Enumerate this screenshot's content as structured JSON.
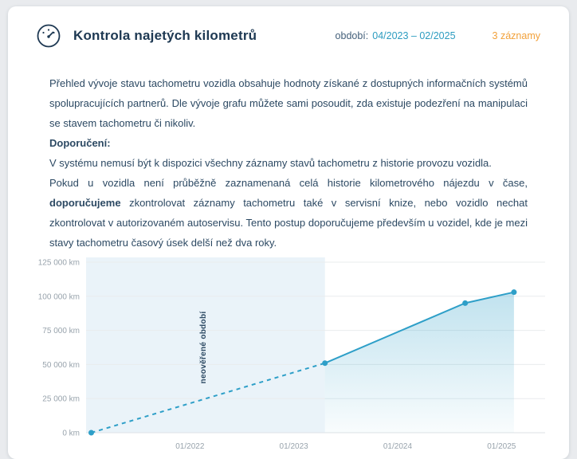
{
  "header": {
    "title": "Kontrola najetých kilometrů",
    "period_label": "období:",
    "period_value": "04/2023 – 02/2025",
    "records_label": "3 záznamy"
  },
  "content": {
    "intro": "Přehled vývoje stavu tachometru vozidla obsahuje hodnoty získané z dostupných informačních systémů spolupracujících partnerů. Dle vývoje grafu můžete sami posoudit, zda existuje podezření na manipulaci se stavem tachometru či nikoliv.",
    "recommendation_heading": "Doporučení:",
    "note": "V systému nemusí být k dispozici všechny záznamy stavů tachometru z historie provozu vozidla.",
    "advice_part1": "Pokud u vozidla není průběžně zaznamenaná celá historie kilometrového nájezdu v čase, ",
    "advice_bold": "doporučujeme",
    "advice_part2": " zkontrolovat záznamy tachometru také v servisní knize, nebo vozidlo nechat zkontrolovat v autorizovaném autoservisu. Tento postup doporučujeme především u vozidel, kde je mezi stavy tachometru časový úsek delší než dva roky."
  },
  "chart_data": {
    "type": "line",
    "unit": "km",
    "ylim": [
      0,
      125000
    ],
    "xlim": [
      2021.0,
      2025.42
    ],
    "grid": true,
    "y_ticks": [
      {
        "value": 125000,
        "label": "125 000 km"
      },
      {
        "value": 100000,
        "label": "100 000 km"
      },
      {
        "value": 75000,
        "label": "75 000 km"
      },
      {
        "value": 50000,
        "label": "50 000 km"
      },
      {
        "value": 25000,
        "label": "25 000 km"
      },
      {
        "value": 0,
        "label": "0 km"
      }
    ],
    "x_ticks": [
      {
        "value": 2022,
        "label": "01/2022"
      },
      {
        "value": 2023,
        "label": "01/2023"
      },
      {
        "value": 2024,
        "label": "01/2024"
      },
      {
        "value": 2025,
        "label": "01/2025"
      }
    ],
    "unverified_region": {
      "from": 2021.0,
      "to": 2023.3,
      "label": "neověřené období"
    },
    "series": [
      {
        "name": "neovereny-prubeh",
        "style": "dashed",
        "points": [
          {
            "x": 2021.05,
            "y": 0
          },
          {
            "x": 2023.3,
            "y": 51000
          }
        ]
      },
      {
        "name": "overene-zaznamy",
        "style": "solid",
        "points": [
          {
            "x": 2023.3,
            "y": 51000
          },
          {
            "x": 2024.65,
            "y": 95000
          },
          {
            "x": 2025.12,
            "y": 103000
          }
        ]
      }
    ],
    "markers": [
      {
        "x": 2021.05,
        "y": 0
      },
      {
        "x": 2023.3,
        "y": 51000
      },
      {
        "x": 2024.65,
        "y": 95000
      },
      {
        "x": 2025.12,
        "y": 103000
      }
    ]
  },
  "colors": {
    "line": "#2e9fc8",
    "unverified_fill": "#eaf3f9",
    "grid": "#e9eced",
    "axis": "#dde2e6",
    "accent_teal": "#2d9cc0",
    "badge_orange": "#f2a13a",
    "text": "#2c4963",
    "title": "#1d3852"
  }
}
